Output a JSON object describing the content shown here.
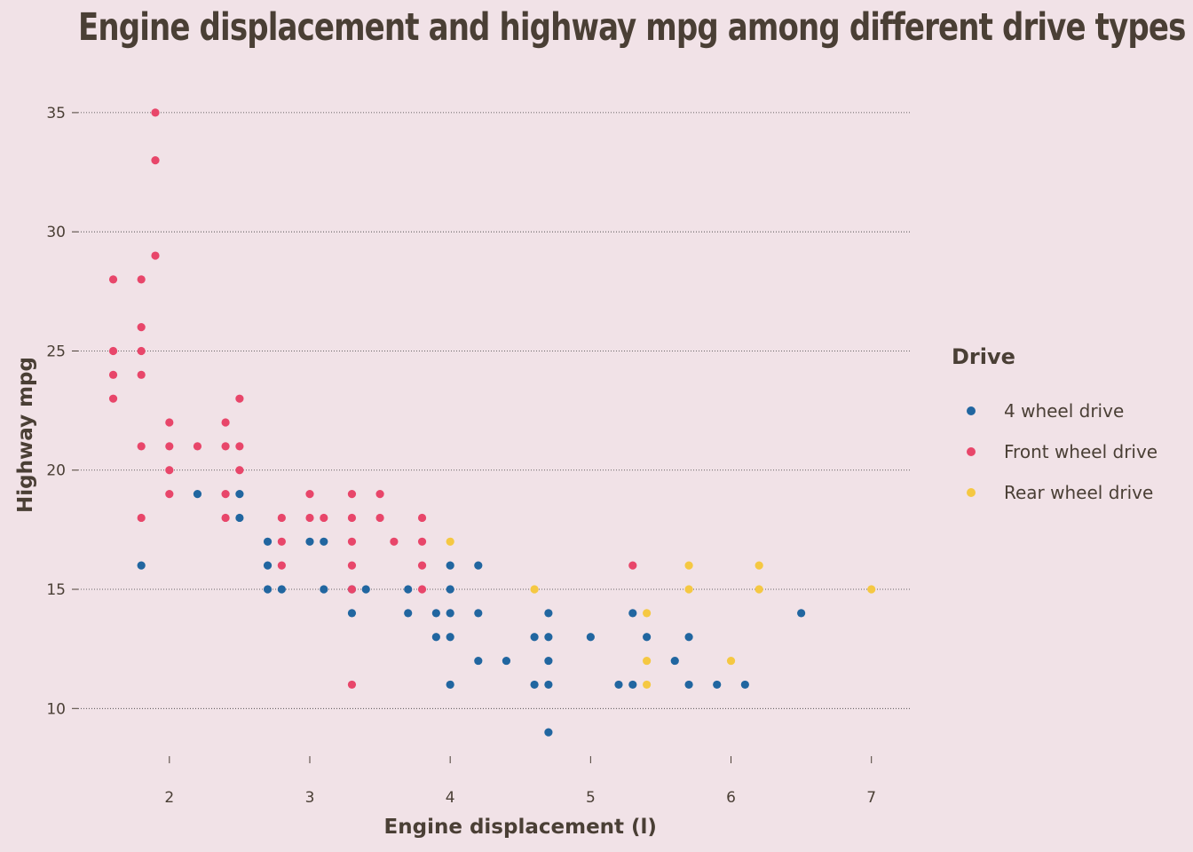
{
  "chart_data": {
    "type": "scatter",
    "title": "Engine displacement and highway mpg among different drive types",
    "xlabel": "Engine displacement (l)",
    "ylabel": "Highway mpg",
    "xlim": [
      1.35,
      7.28
    ],
    "ylim": [
      8.0,
      36.3
    ],
    "x_ticks": [
      2,
      3,
      4,
      5,
      6,
      7
    ],
    "y_ticks": [
      10,
      15,
      20,
      25,
      30,
      35
    ],
    "grid": "horizontal-dotted",
    "legend": {
      "title": "Drive",
      "placement": "right"
    },
    "series": [
      {
        "name": "4 wheel drive",
        "color": "#2166a0",
        "points": [
          [
            1.8,
            16
          ],
          [
            2.2,
            19
          ],
          [
            2.5,
            19
          ],
          [
            2.5,
            18
          ],
          [
            2.7,
            17
          ],
          [
            2.7,
            16
          ],
          [
            2.7,
            15
          ],
          [
            2.8,
            15
          ],
          [
            3.0,
            17
          ],
          [
            3.1,
            17
          ],
          [
            3.1,
            15
          ],
          [
            3.3,
            15
          ],
          [
            3.3,
            14
          ],
          [
            3.4,
            15
          ],
          [
            3.7,
            15
          ],
          [
            3.7,
            14
          ],
          [
            3.9,
            14
          ],
          [
            3.9,
            13
          ],
          [
            4.0,
            16
          ],
          [
            4.0,
            15
          ],
          [
            4.0,
            14
          ],
          [
            4.0,
            13
          ],
          [
            4.0,
            11
          ],
          [
            4.2,
            16
          ],
          [
            4.2,
            14
          ],
          [
            4.2,
            12
          ],
          [
            4.4,
            12
          ],
          [
            4.6,
            13
          ],
          [
            4.6,
            11
          ],
          [
            4.7,
            14
          ],
          [
            4.7,
            13
          ],
          [
            4.7,
            12
          ],
          [
            4.7,
            11
          ],
          [
            4.7,
            9
          ],
          [
            5.0,
            13
          ],
          [
            5.2,
            11
          ],
          [
            5.3,
            14
          ],
          [
            5.3,
            11
          ],
          [
            5.4,
            13
          ],
          [
            5.6,
            12
          ],
          [
            5.7,
            13
          ],
          [
            5.7,
            11
          ],
          [
            5.9,
            11
          ],
          [
            6.1,
            11
          ],
          [
            6.5,
            14
          ]
        ]
      },
      {
        "name": "Front wheel drive",
        "color": "#e8466a",
        "points": [
          [
            1.6,
            28
          ],
          [
            1.6,
            25
          ],
          [
            1.6,
            24
          ],
          [
            1.6,
            23
          ],
          [
            1.8,
            28
          ],
          [
            1.8,
            26
          ],
          [
            1.8,
            25
          ],
          [
            1.8,
            24
          ],
          [
            1.8,
            21
          ],
          [
            1.8,
            18
          ],
          [
            1.9,
            35
          ],
          [
            1.9,
            33
          ],
          [
            1.9,
            29
          ],
          [
            2.0,
            22
          ],
          [
            2.0,
            21
          ],
          [
            2.0,
            20
          ],
          [
            2.0,
            19
          ],
          [
            2.2,
            21
          ],
          [
            2.4,
            22
          ],
          [
            2.4,
            21
          ],
          [
            2.4,
            19
          ],
          [
            2.4,
            18
          ],
          [
            2.5,
            23
          ],
          [
            2.5,
            21
          ],
          [
            2.5,
            20
          ],
          [
            2.8,
            18
          ],
          [
            2.8,
            17
          ],
          [
            2.8,
            16
          ],
          [
            3.0,
            19
          ],
          [
            3.0,
            18
          ],
          [
            3.1,
            18
          ],
          [
            3.3,
            19
          ],
          [
            3.3,
            18
          ],
          [
            3.3,
            17
          ],
          [
            3.3,
            16
          ],
          [
            3.3,
            15
          ],
          [
            3.3,
            11
          ],
          [
            3.5,
            19
          ],
          [
            3.5,
            18
          ],
          [
            3.6,
            17
          ],
          [
            3.8,
            18
          ],
          [
            3.8,
            17
          ],
          [
            3.8,
            16
          ],
          [
            3.8,
            15
          ],
          [
            5.3,
            16
          ]
        ]
      },
      {
        "name": "Rear wheel drive",
        "color": "#f5c842",
        "points": [
          [
            4.0,
            17
          ],
          [
            4.6,
            15
          ],
          [
            5.4,
            14
          ],
          [
            5.4,
            12
          ],
          [
            5.4,
            11
          ],
          [
            5.7,
            16
          ],
          [
            5.7,
            15
          ],
          [
            6.0,
            12
          ],
          [
            6.2,
            16
          ],
          [
            6.2,
            15
          ],
          [
            7.0,
            15
          ]
        ]
      }
    ]
  }
}
